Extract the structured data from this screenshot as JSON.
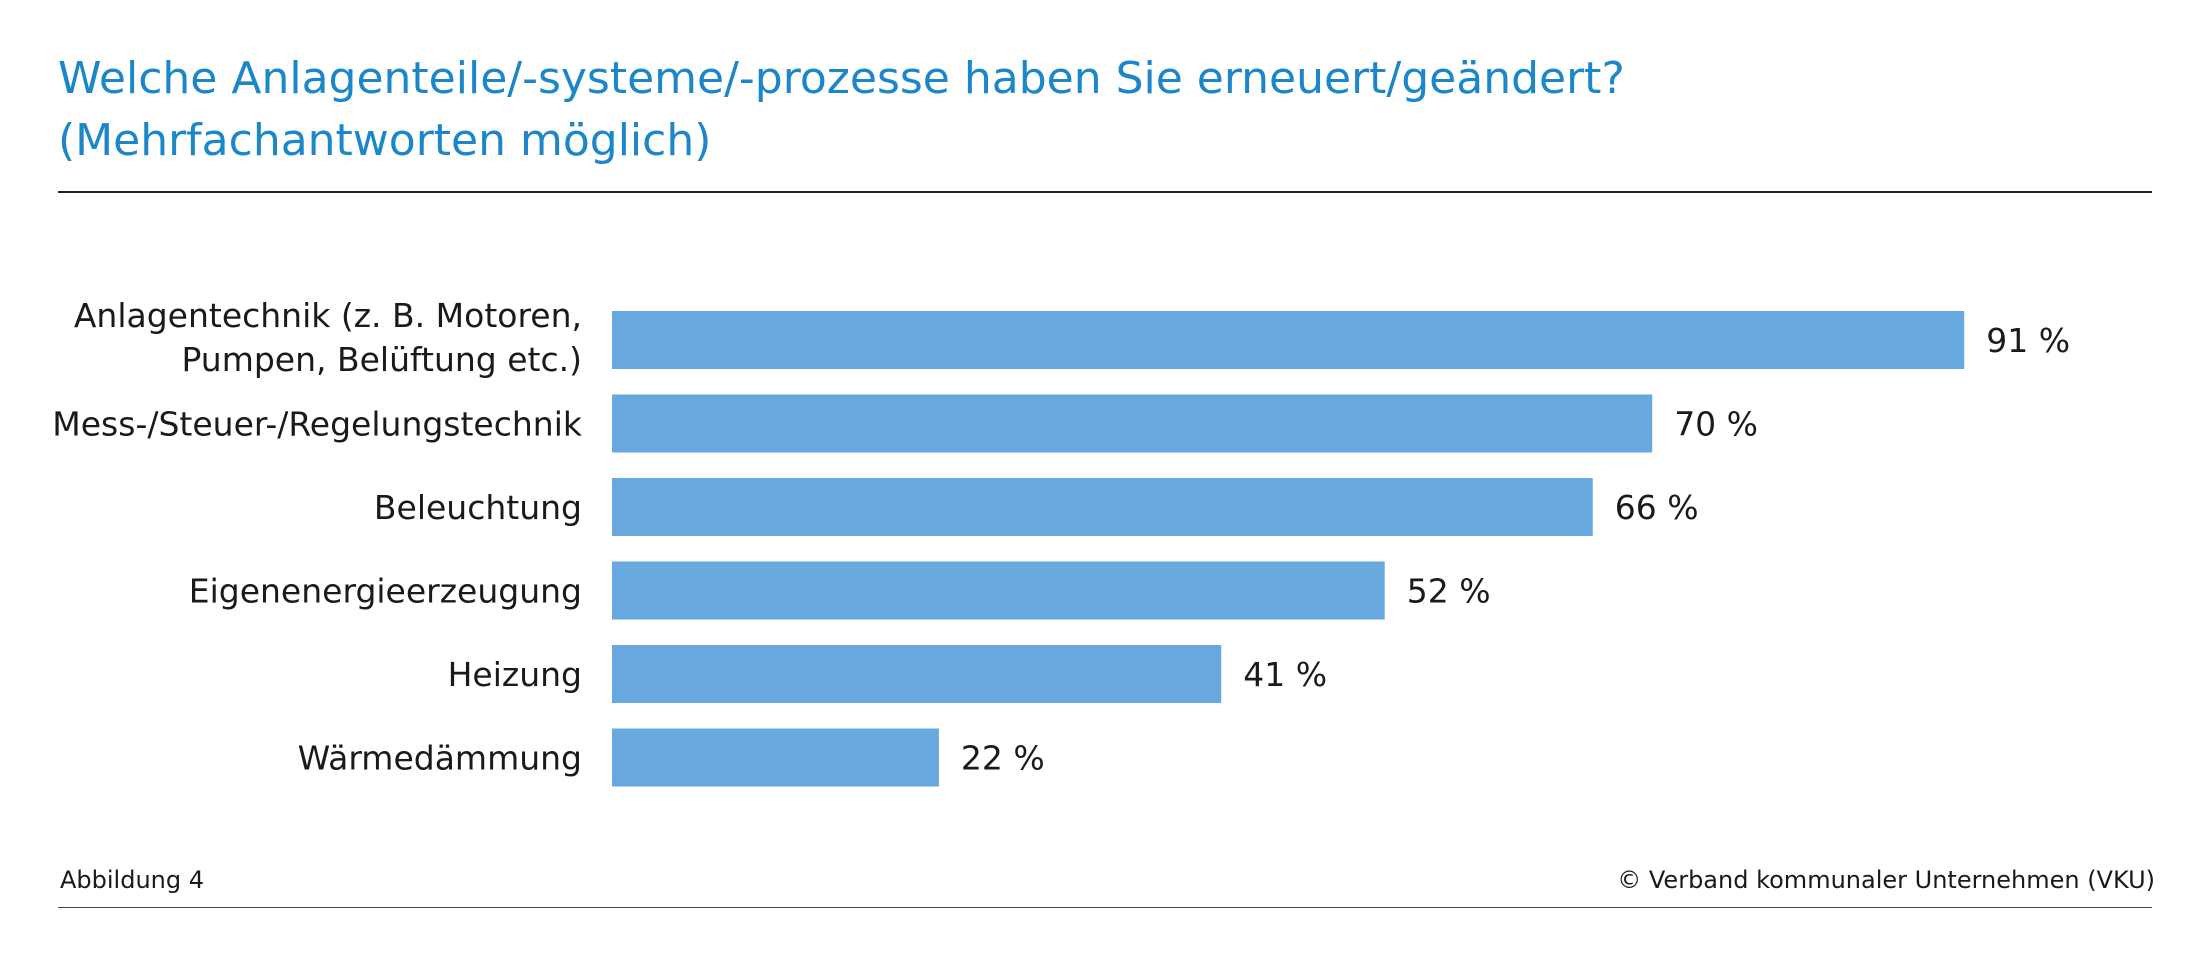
{
  "header": {
    "title_line1": "Welche Anlagenteile/-systeme/-prozesse haben Sie erneuert/geändert?",
    "title_line2": "(Mehrfachantworten möglich)"
  },
  "footer": {
    "figure_label": "Abbildung 4",
    "copyright": "© Verband kommunaler Unternehmen (VKU)"
  },
  "colors": {
    "title": "#1b86c8",
    "bar": "#67a9de",
    "text": "#1a1a1a"
  },
  "chart_data": {
    "type": "bar",
    "orientation": "horizontal",
    "categories": [
      [
        "Anlagentechnik (z. B. Motoren,",
        "Pumpen, Belüftung etc.)"
      ],
      [
        "Mess-/Steuer-/Regelungstechnik"
      ],
      [
        "Beleuchtung"
      ],
      [
        "Eigenenergieerzeugung"
      ],
      [
        "Heizung"
      ],
      [
        "Wärmedämmung"
      ]
    ],
    "values": [
      91,
      70,
      66,
      52,
      41,
      22
    ],
    "value_labels": [
      "91 %",
      "70 %",
      "66 %",
      "52 %",
      "41 %",
      "22 %"
    ],
    "unit": "%",
    "xlim": [
      0,
      100
    ],
    "grid": false,
    "legend": "none"
  }
}
